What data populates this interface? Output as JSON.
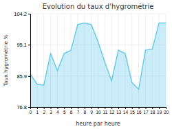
{
  "chart_data": {
    "type": "area",
    "title": "Evolution du taux d'hygrométrie",
    "xlabel": "heure par heure",
    "ylabel": "Taux hygrométrie %",
    "x": [
      0,
      1,
      2,
      3,
      4,
      5,
      6,
      7,
      8,
      9,
      10,
      11,
      12,
      13,
      14,
      15,
      16,
      17,
      18,
      19,
      20
    ],
    "values": [
      86.5,
      83.5,
      83.2,
      92.5,
      87.5,
      92.5,
      93.5,
      101.0,
      101.5,
      101.0,
      96.0,
      90.0,
      84.5,
      93.5,
      92.5,
      84.0,
      82.0,
      93.5,
      93.8,
      101.5,
      101.5
    ],
    "color": "#66ccee",
    "xlim": [
      0,
      20
    ],
    "xticks": [
      0,
      1,
      2,
      3,
      4,
      5,
      6,
      7,
      8,
      9,
      10,
      11,
      12,
      13,
      14,
      15,
      16,
      17,
      18,
      19,
      20
    ],
    "ylim": [
      76.8,
      104.2
    ],
    "yticks": [
      76.8,
      85.9,
      95.1,
      104.2
    ],
    "grid": true
  }
}
